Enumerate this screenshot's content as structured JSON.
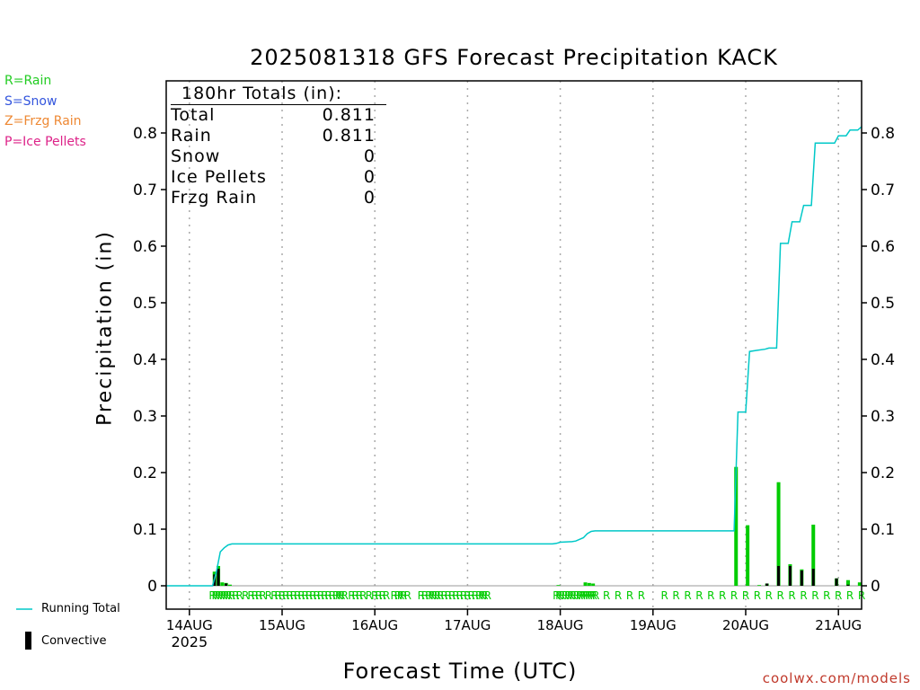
{
  "chart_data": {
    "type": "bar",
    "title": "2025081318 GFS Forecast Precipitation KACK",
    "xlabel": "Forecast Time (UTC)",
    "ylabel": "Precipitation (in)",
    "ylim": [
      -0.02,
      0.89
    ],
    "yticks": [
      0,
      0.1,
      0.2,
      0.3,
      0.4,
      0.5,
      0.6,
      0.7,
      0.8
    ],
    "ytick_labels": [
      "0",
      "0.1",
      "0.2",
      "0.3",
      "0.4",
      "0.5",
      "0.6",
      "0.7",
      "0.8"
    ],
    "x_unit": "forecast hours from 2025-08-13 18Z",
    "xlim": [
      0,
      180
    ],
    "xticks": [
      {
        "hour": 6,
        "label": "14AUG",
        "sublabel": "2025"
      },
      {
        "hour": 30,
        "label": "15AUG"
      },
      {
        "hour": 54,
        "label": "16AUG"
      },
      {
        "hour": 78,
        "label": "17AUG"
      },
      {
        "hour": 102,
        "label": "18AUG"
      },
      {
        "hour": 126,
        "label": "19AUG"
      },
      {
        "hour": 150,
        "label": "20AUG"
      },
      {
        "hour": 174,
        "label": "21AUG"
      }
    ],
    "grid": true,
    "legend_position": "bottom-left",
    "series": [
      {
        "name": "Running Total",
        "kind": "line",
        "color": "#00c8c8",
        "points": [
          [
            0,
            0
          ],
          [
            12,
            0
          ],
          [
            13,
            0.025
          ],
          [
            14,
            0.06
          ],
          [
            15,
            0.067
          ],
          [
            16,
            0.072
          ],
          [
            17,
            0.074
          ],
          [
            100,
            0.074
          ],
          [
            101,
            0.075
          ],
          [
            102,
            0.077
          ],
          [
            105,
            0.078
          ],
          [
            106,
            0.079
          ],
          [
            108,
            0.085
          ],
          [
            109,
            0.092
          ],
          [
            110,
            0.096
          ],
          [
            111,
            0.097
          ],
          [
            147,
            0.097
          ],
          [
            148,
            0.307
          ],
          [
            150,
            0.307
          ],
          [
            151,
            0.414
          ],
          [
            153,
            0.416
          ],
          [
            155,
            0.418
          ],
          [
            156,
            0.42
          ],
          [
            158,
            0.42
          ],
          [
            159,
            0.605
          ],
          [
            161,
            0.605
          ],
          [
            162,
            0.643
          ],
          [
            164,
            0.643
          ],
          [
            165,
            0.672
          ],
          [
            167,
            0.672
          ],
          [
            168,
            0.782
          ],
          [
            173,
            0.782
          ],
          [
            174,
            0.795
          ],
          [
            176,
            0.795
          ],
          [
            177,
            0.805
          ],
          [
            179,
            0.805
          ],
          [
            180,
            0.811
          ]
        ]
      },
      {
        "name": "Rain",
        "kind": "bar",
        "color": "#00cc00",
        "points": [
          [
            12.5,
            0.025
          ],
          [
            13.5,
            0.035
          ],
          [
            14.5,
            0.006
          ],
          [
            15.5,
            0.005
          ],
          [
            16.5,
            0.002
          ],
          [
            101.5,
            0.001
          ],
          [
            108.5,
            0.006
          ],
          [
            109.5,
            0.005
          ],
          [
            110.5,
            0.004
          ],
          [
            147.5,
            0.21
          ],
          [
            150.5,
            0.107
          ],
          [
            153.5,
            0.001
          ],
          [
            155.5,
            0.004
          ],
          [
            158.5,
            0.183
          ],
          [
            161.5,
            0.038
          ],
          [
            164.5,
            0.029
          ],
          [
            167.5,
            0.108
          ],
          [
            173.5,
            0.013
          ],
          [
            176.5,
            0.01
          ],
          [
            179.5,
            0.006
          ]
        ]
      },
      {
        "name": "Convective",
        "kind": "bar",
        "color": "#000000",
        "points": [
          [
            12.5,
            0.02
          ],
          [
            13.5,
            0.03
          ],
          [
            15.5,
            0.004
          ],
          [
            155.5,
            0.004
          ],
          [
            158.5,
            0.035
          ],
          [
            161.5,
            0.035
          ],
          [
            164.5,
            0.027
          ],
          [
            167.5,
            0.03
          ],
          [
            173.5,
            0.013
          ],
          [
            176.5,
            0.002
          ]
        ]
      }
    ],
    "ptype_markers": {
      "symbol": "R",
      "hours": [
        12,
        12.7,
        13.4,
        14.1,
        14.8,
        15.5,
        16.2,
        17,
        18,
        19,
        20.5,
        22,
        23,
        24,
        25,
        26.5,
        28,
        29,
        30,
        31,
        32,
        33,
        34,
        35,
        36,
        37,
        38,
        39,
        40,
        41,
        42,
        43,
        44,
        44.7,
        45.4,
        46.2,
        48,
        49,
        50,
        51,
        52.5,
        54,
        55,
        56,
        57,
        59,
        60,
        60.7,
        61.4,
        62.5,
        66,
        67,
        68,
        68.7,
        69.4,
        70.2,
        71,
        72,
        73,
        74,
        75,
        76,
        77,
        78,
        79,
        80,
        81,
        81.7,
        82.4,
        83.2,
        101,
        101.7,
        102.4,
        103.2,
        104,
        104.7,
        105.4,
        106.2,
        107,
        107.6,
        108.2,
        108.8,
        109.4,
        110,
        110.6,
        111.2,
        114,
        117,
        120,
        123,
        129,
        132,
        135,
        138,
        141,
        144,
        147,
        150,
        153,
        156,
        159,
        162,
        165,
        168,
        171,
        174,
        177,
        180
      ],
      "color": "#00cc00"
    },
    "totals_box": {
      "header": "180hr Totals (in):",
      "rows": [
        {
          "label": "Total",
          "value": "0.811"
        },
        {
          "label": "Rain",
          "value": "0.811"
        },
        {
          "label": "Snow",
          "value": "0"
        },
        {
          "label": "Ice Pellets",
          "value": "0"
        },
        {
          "label": "Frzg Rain",
          "value": "0"
        }
      ]
    }
  },
  "ptype_legend": [
    {
      "text": "R=Rain",
      "color": "#22cc22"
    },
    {
      "text": "S=Snow",
      "color": "#3355dd"
    },
    {
      "text": "Z=Frzg Rain",
      "color": "#ee8833"
    },
    {
      "text": "P=Ice Pellets",
      "color": "#dd2288"
    }
  ],
  "legend": {
    "running_total": "Running Total",
    "convective": "Convective"
  },
  "credit": "coolwx.com/models"
}
